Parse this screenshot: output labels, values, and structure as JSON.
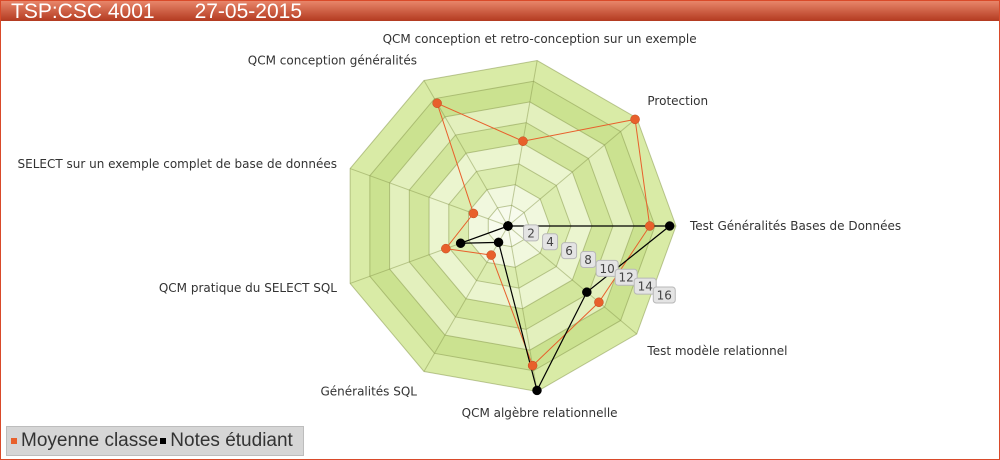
{
  "header": {
    "code": "TSP:CSC 4001",
    "date": "27-05-2015"
  },
  "colors": {
    "moyenne": "#e8602c",
    "etudiant": "#000000",
    "grid_line": "#8a9a50",
    "ring_dark": "#c8e08a",
    "ring_light": "#eaf4c8"
  },
  "chart_data": {
    "type": "radar",
    "axes": [
      "Test Généralités Bases de Données",
      "Test modèle relationnel",
      "QCM algèbre relationnelle",
      "Généralités SQL",
      "QCM pratique du SELECT SQL",
      "SELECT sur un exemple complet de base de données",
      "QCM conception généralités",
      "QCM conception et retro-conception sur un exemple",
      "Protection"
    ],
    "range": [
      0,
      16
    ],
    "ticks": [
      2,
      4,
      6,
      8,
      10,
      12,
      14,
      16
    ],
    "series": [
      {
        "name": "Moyenne classe",
        "values": [
          13.5,
          11.3,
          13.5,
          3.2,
          6.3,
          3.5,
          13.5,
          8.2,
          15.8
        ]
      },
      {
        "name": "Notes étudiant",
        "values": [
          15.4,
          9.8,
          15.9,
          1.8,
          4.8,
          0,
          0,
          0,
          0
        ]
      }
    ],
    "legend_position": "bottom-left"
  },
  "legend": {
    "items": [
      {
        "label": "Moyenne classe"
      },
      {
        "label": "Notes étudiant"
      }
    ]
  }
}
